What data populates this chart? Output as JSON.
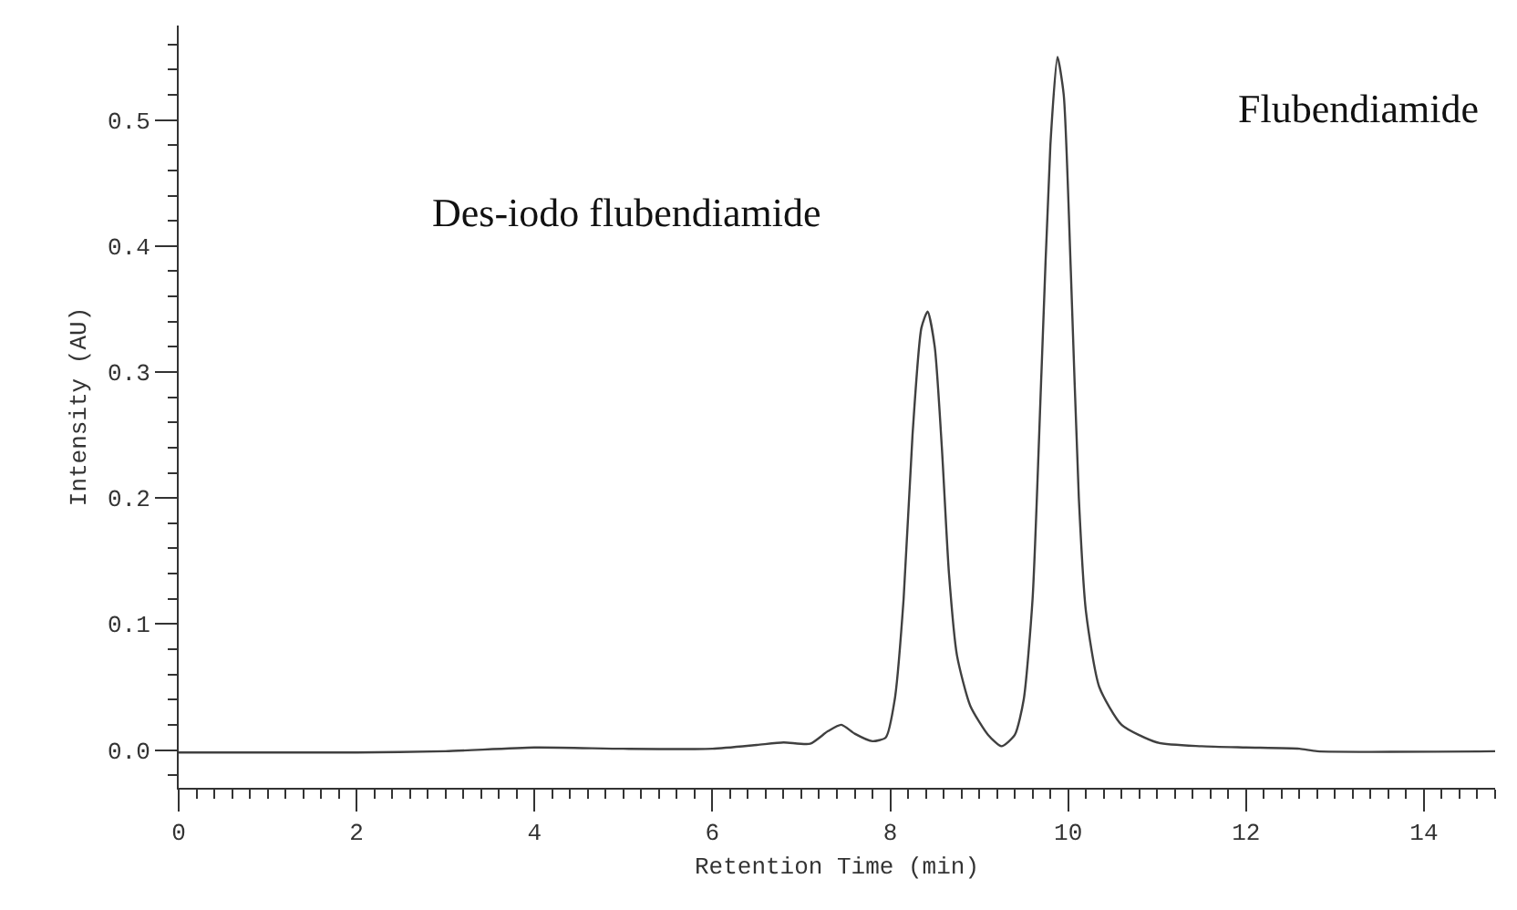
{
  "chart_data": {
    "type": "line",
    "xlabel": "Retention Time (min)",
    "ylabel": "Intensity (AU)",
    "annotations": [
      "Des-iodo flubendiamide",
      "Flubendiamide"
    ],
    "x": [
      0,
      2,
      3,
      4,
      5,
      6,
      6.5,
      6.8,
      7.1,
      7.3,
      7.45,
      7.6,
      7.8,
      7.95,
      8.05,
      8.15,
      8.25,
      8.35,
      8.42,
      8.5,
      8.58,
      8.66,
      8.75,
      8.9,
      9.1,
      9.25,
      9.4,
      9.5,
      9.6,
      9.7,
      9.8,
      9.88,
      9.95,
      10.03,
      10.12,
      10.2,
      10.35,
      10.6,
      11,
      11.5,
      12,
      12.6,
      12.8,
      14.8
    ],
    "series": [
      {
        "color": "#404040",
        "values": [
          -0.002,
          -0.002,
          -0.001,
          0.002,
          0.001,
          0.001,
          0.004,
          0.006,
          0.005,
          0.015,
          0.02,
          0.013,
          0.007,
          0.01,
          0.04,
          0.12,
          0.25,
          0.335,
          0.348,
          0.32,
          0.24,
          0.14,
          0.075,
          0.035,
          0.012,
          0.003,
          0.012,
          0.04,
          0.12,
          0.3,
          0.48,
          0.55,
          0.52,
          0.38,
          0.2,
          0.11,
          0.05,
          0.02,
          0.006,
          0.003,
          0.002,
          0.001,
          -0.001,
          -0.001
        ]
      }
    ],
    "xlim": [
      0,
      14.8
    ],
    "ylim": [
      -0.03,
      0.575
    ],
    "xticks": [
      0,
      2,
      4,
      6,
      8,
      10,
      12,
      14
    ],
    "yticks": [
      {
        "value": 0,
        "label": "0.0"
      },
      0.1,
      0.2,
      0.3,
      0.4,
      0.5
    ],
    "marker": "none",
    "line_style": "solid"
  }
}
